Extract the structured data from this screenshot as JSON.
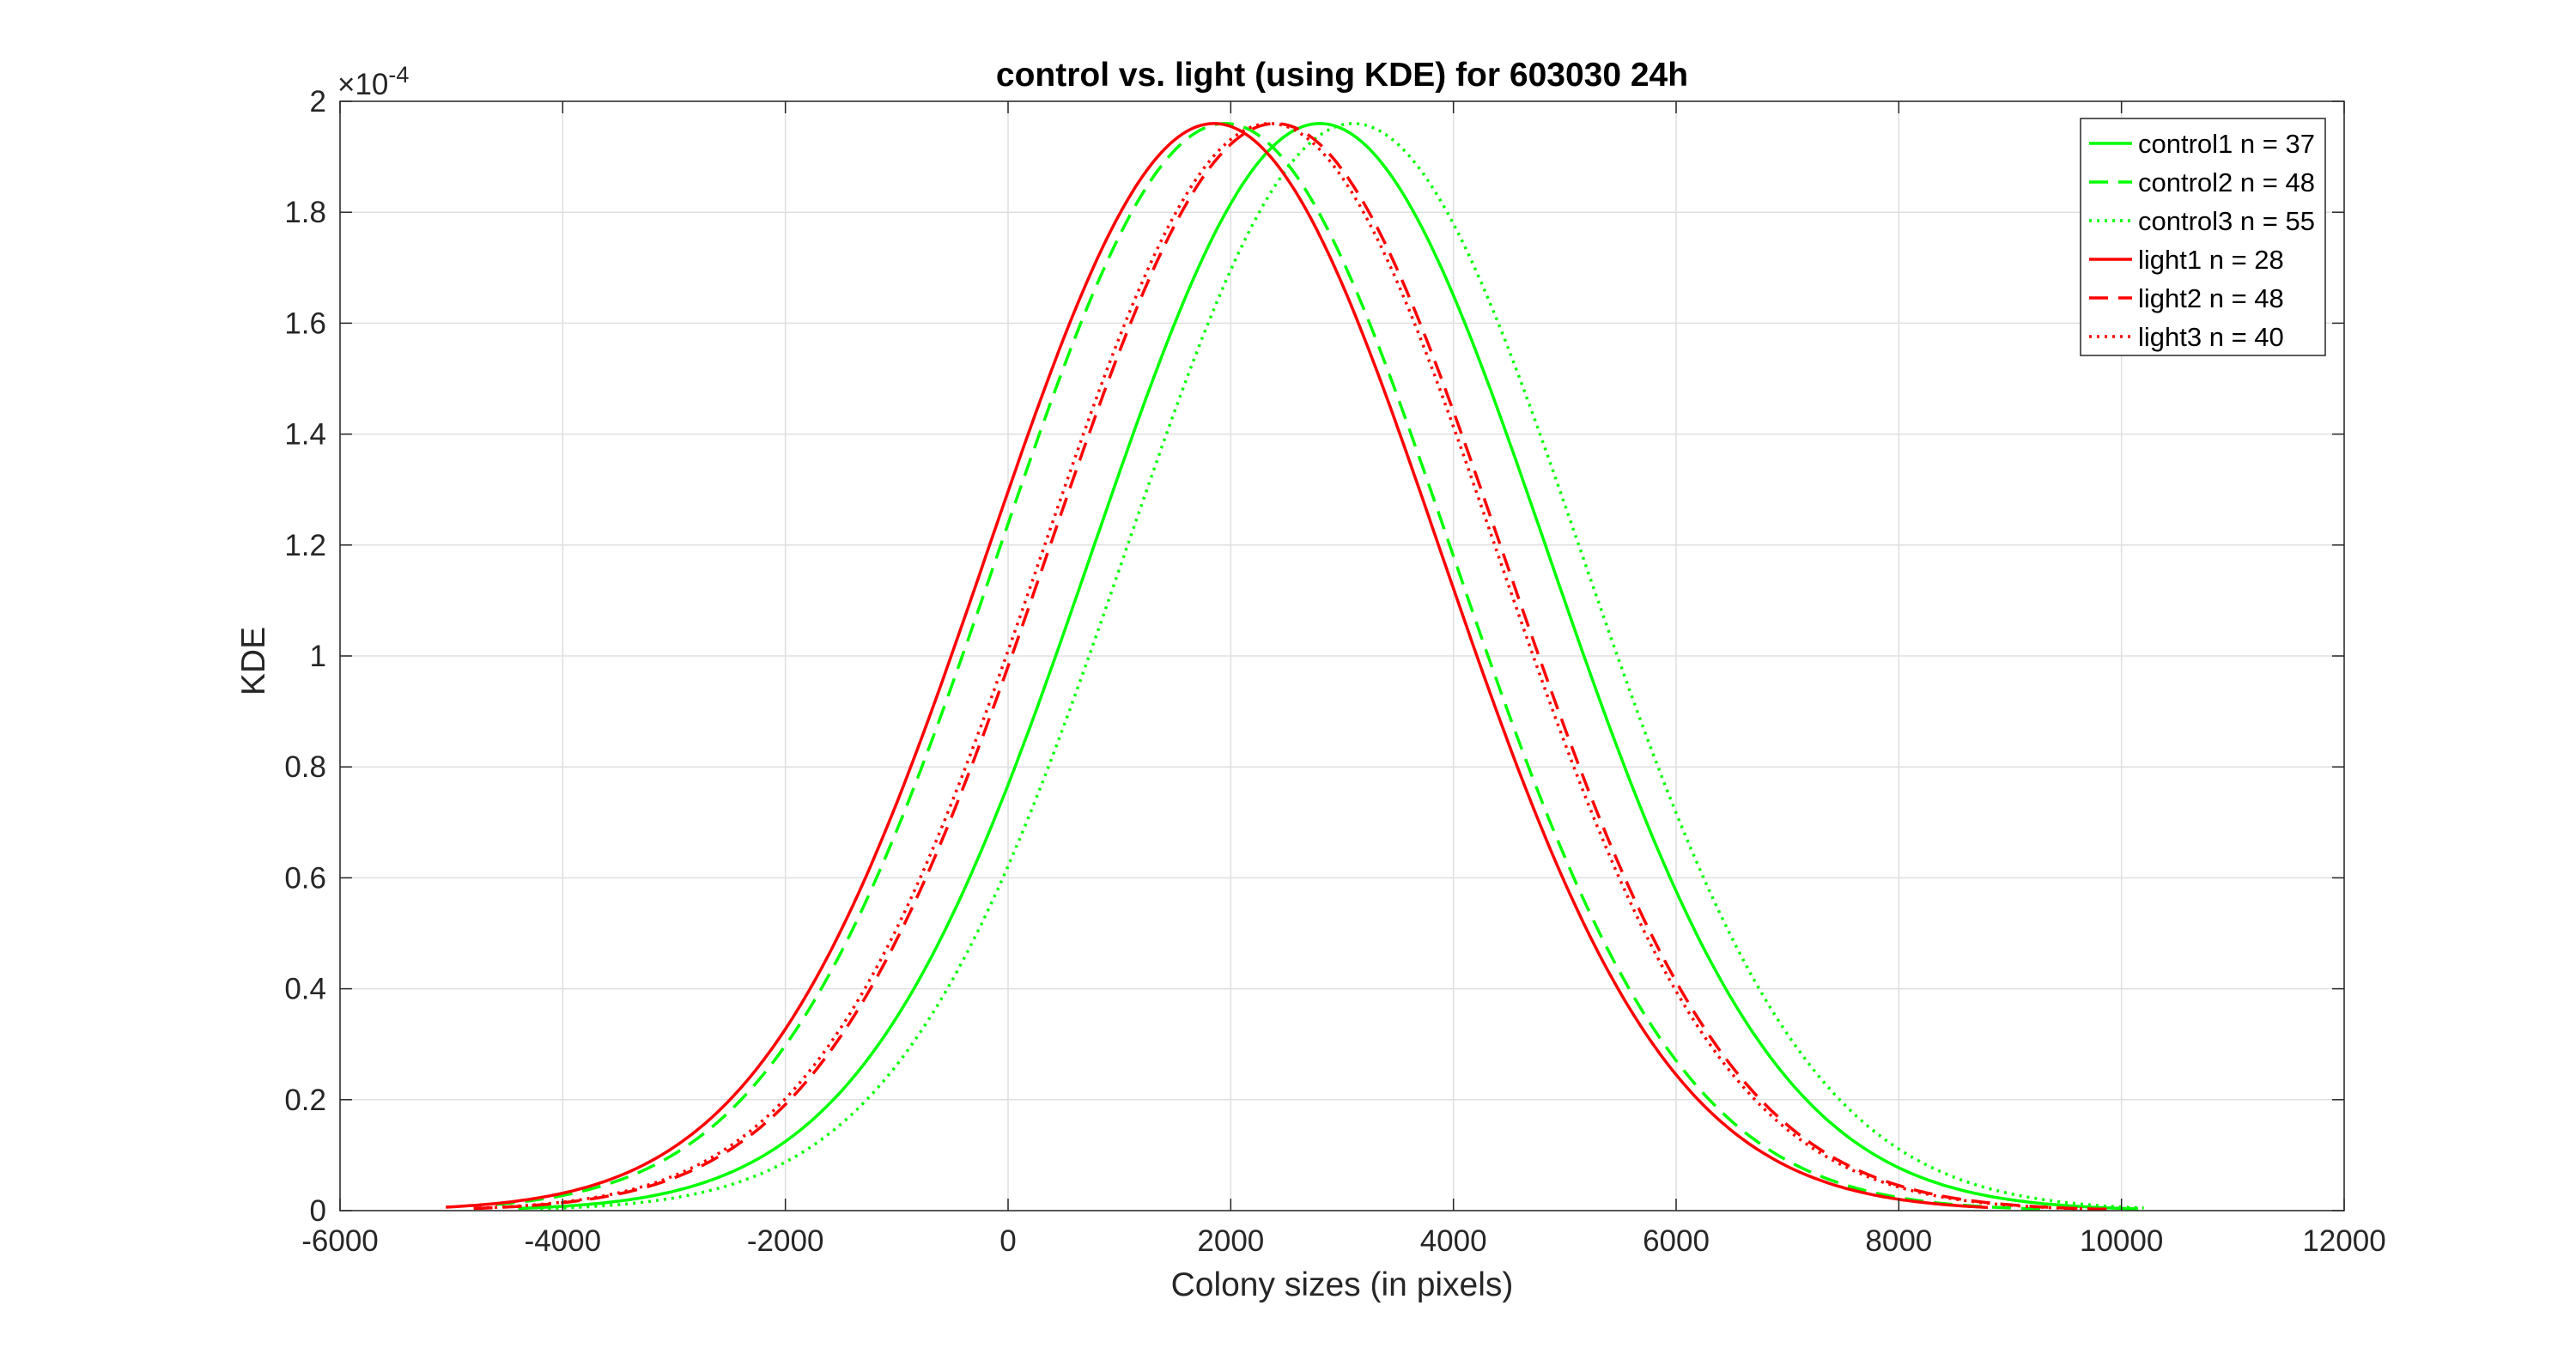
{
  "chart_data": {
    "type": "line",
    "title": "control vs. light (using KDE) for  603030 24h",
    "xlabel": "Colony sizes (in pixels)",
    "ylabel": "KDE",
    "xlim": [
      -6000,
      12000
    ],
    "ylim": [
      0,
      0.0002
    ],
    "y_exponent_label": "×10",
    "y_exponent_power": "-4",
    "xticks": [
      -6000,
      -4000,
      -2000,
      0,
      2000,
      4000,
      6000,
      8000,
      10000,
      12000
    ],
    "xtick_labels": [
      "-6000",
      "-4000",
      "-2000",
      "0",
      "2000",
      "4000",
      "6000",
      "8000",
      "10000",
      "12000"
    ],
    "yticks": [
      0,
      2e-05,
      4e-05,
      6e-05,
      8e-05,
      0.0001,
      0.00012,
      0.00014,
      0.00016,
      0.00018,
      0.0002
    ],
    "ytick_labels": [
      "0",
      "0.2",
      "0.4",
      "0.6",
      "0.8",
      "1",
      "1.2",
      "1.4",
      "1.6",
      "1.8",
      "2"
    ],
    "grid": true,
    "legend_position": "top-right",
    "series": [
      {
        "name": "control1 n = 37",
        "color": "#00ff00",
        "style": "solid",
        "mean": 2800,
        "sd": 2045,
        "xmin": -4400,
        "xmax": 10150
      },
      {
        "name": "control2 n = 48",
        "color": "#00ff00",
        "style": "dashed",
        "mean": 1950,
        "sd": 2035,
        "xmin": -4600,
        "xmax": 9300
      },
      {
        "name": "control3 n = 55",
        "color": "#00ff00",
        "style": "dotted",
        "mean": 3100,
        "sd": 2045,
        "xmin": -4200,
        "xmax": 10200
      },
      {
        "name": "light1 n = 28",
        "color": "#ff0000",
        "style": "solid",
        "mean": 1850,
        "sd": 2035,
        "xmin": -5050,
        "xmax": 8800
      },
      {
        "name": "light2 n = 48",
        "color": "#ff0000",
        "style": "dashed",
        "mean": 2400,
        "sd": 2040,
        "xmin": -4800,
        "xmax": 9900
      },
      {
        "name": "light3 n = 40",
        "color": "#ff0000",
        "style": "dotted",
        "mean": 2350,
        "sd": 2040,
        "xmin": -4750,
        "xmax": 9900
      }
    ]
  }
}
